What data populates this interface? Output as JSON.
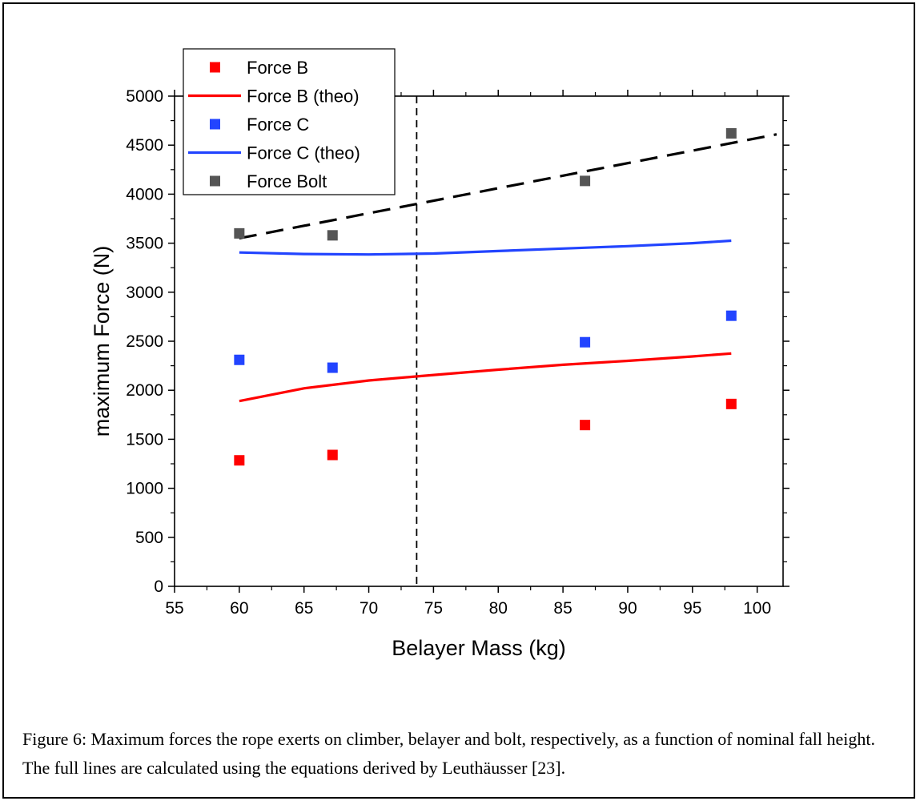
{
  "caption": "Figure 6: Maximum forces the rope exerts on climber, belayer and bolt, respectively, as a function of nominal fall height. The full lines are calculated using the equations derived by Leuthäusser [23].",
  "chart_data": {
    "type": "scatter",
    "xlabel": "Belayer Mass (kg)",
    "ylabel": "maximum Force (N)",
    "xlim": [
      55,
      102
    ],
    "ylim": [
      0,
      5000
    ],
    "xticks": [
      55,
      60,
      65,
      70,
      75,
      80,
      85,
      90,
      95,
      100
    ],
    "yticks": [
      0,
      500,
      1000,
      1500,
      2000,
      2500,
      3000,
      3500,
      4000,
      4500,
      5000
    ],
    "grid": false,
    "legend_position": "top-left",
    "series": [
      {
        "name": "Force B",
        "kind": "points",
        "color": "#ff0000",
        "x": [
          60,
          67.2,
          86.7,
          98
        ],
        "y": [
          1285,
          1340,
          1645,
          1860
        ]
      },
      {
        "name": "Force B (theo)",
        "kind": "line",
        "color": "#ff0000",
        "x": [
          60,
          65,
          70,
          74,
          80,
          85,
          90,
          95,
          98
        ],
        "y": [
          1890,
          2020,
          2100,
          2145,
          2210,
          2260,
          2300,
          2345,
          2375
        ]
      },
      {
        "name": "Force C",
        "kind": "points",
        "color": "#2244ff",
        "x": [
          60,
          67.2,
          86.7,
          98
        ],
        "y": [
          2310,
          2230,
          2490,
          2760
        ]
      },
      {
        "name": "Force C (theo)",
        "kind": "line",
        "color": "#2244ff",
        "x": [
          60,
          65,
          70,
          75,
          80,
          85,
          90,
          95,
          98
        ],
        "y": [
          3405,
          3390,
          3385,
          3395,
          3420,
          3445,
          3470,
          3500,
          3525
        ]
      },
      {
        "name": "Force Bolt",
        "kind": "points",
        "color": "#555555",
        "x": [
          60,
          67.2,
          86.7,
          98
        ],
        "y": [
          3600,
          3580,
          4135,
          4620
        ]
      }
    ],
    "annotations": [
      {
        "kind": "dashed-fit-line",
        "color": "#000000",
        "x": [
          60,
          101.5
        ],
        "y": [
          3550,
          4610
        ]
      },
      {
        "kind": "vertical-dashed-line",
        "color": "#000000",
        "x": 73.7
      }
    ]
  }
}
